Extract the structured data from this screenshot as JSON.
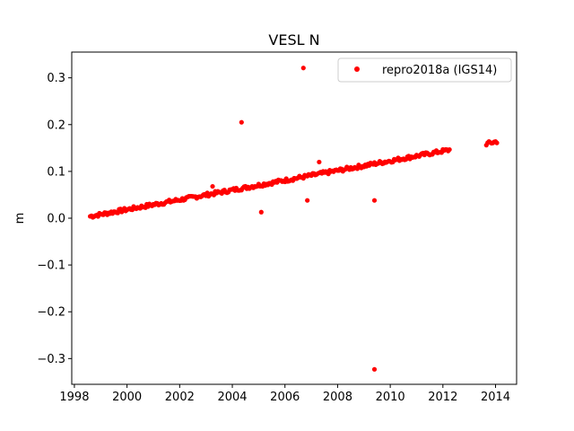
{
  "chart_data": {
    "type": "scatter",
    "title": "VESL N",
    "xlabel": "",
    "ylabel": "m",
    "xlim": [
      1997.9,
      2014.8
    ],
    "ylim": [
      -0.355,
      0.355
    ],
    "xticks": [
      1998,
      2000,
      2002,
      2004,
      2006,
      2008,
      2010,
      2012,
      2014
    ],
    "yticks": [
      -0.3,
      -0.2,
      -0.1,
      0.0,
      0.1,
      0.2,
      0.3
    ],
    "xtick_labels": [
      "1998",
      "2000",
      "2002",
      "2004",
      "2006",
      "2008",
      "2010",
      "2012",
      "2014"
    ],
    "ytick_labels": [
      "−0.3",
      "−0.2",
      "−0.1",
      "0.0",
      "0.1",
      "0.2",
      "0.3"
    ],
    "grid": false,
    "legend_position": "top-right",
    "series": [
      {
        "name": "repro2018a (IGS14)",
        "color": "#ff0000",
        "marker": "circle",
        "trend": {
          "segments": [
            {
              "x_start": 1998.6,
              "x_end": 2012.25,
              "step": 0.05,
              "y_start": 0.004,
              "y_end": 0.146
            },
            {
              "x_start": 2013.65,
              "x_end": 2014.05,
              "step": 0.05,
              "y_start": 0.159,
              "y_end": 0.164
            }
          ]
        },
        "outliers": [
          {
            "x": 2006.7,
            "y": 0.321
          },
          {
            "x": 2004.35,
            "y": 0.205
          },
          {
            "x": 2003.25,
            "y": 0.068
          },
          {
            "x": 2007.3,
            "y": 0.12
          },
          {
            "x": 2005.1,
            "y": 0.013
          },
          {
            "x": 2006.85,
            "y": 0.038
          },
          {
            "x": 2009.4,
            "y": 0.038
          },
          {
            "x": 2009.4,
            "y": -0.323
          }
        ]
      }
    ]
  }
}
